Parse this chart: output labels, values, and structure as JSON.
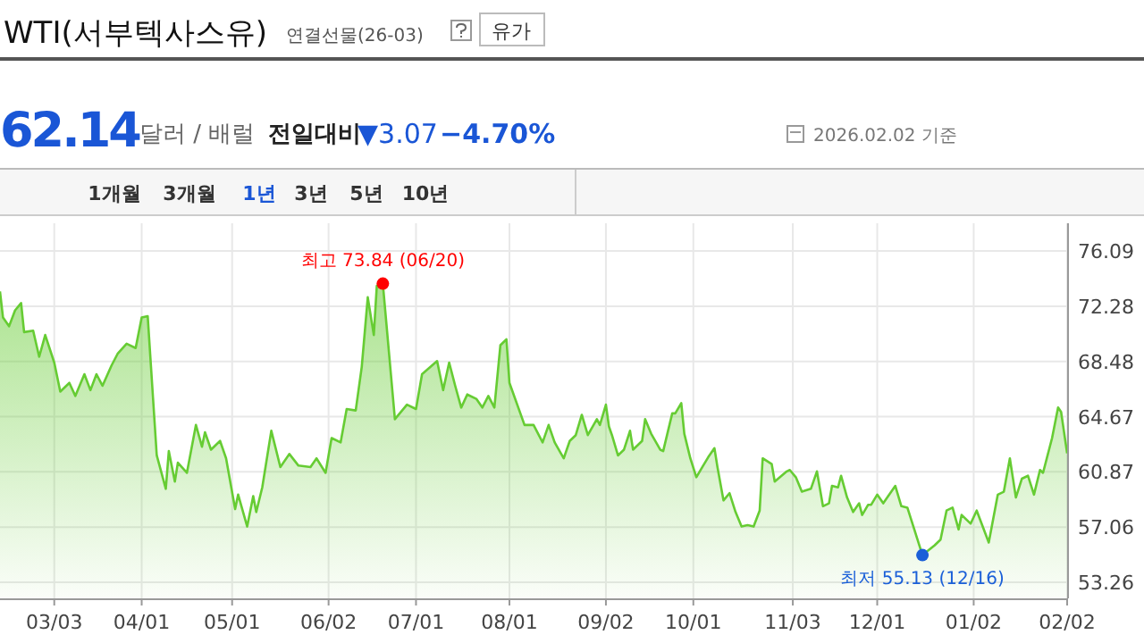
{
  "chart_data": {
    "type": "area",
    "title": "WTI(서부텍사스유)",
    "subtitle": "연결선물(26-03)",
    "annotations": [
      {
        "text": "최고 73.84 (06/20)",
        "x": "2025-06-20",
        "y": 73.84
      },
      {
        "text": "최저 55.13 (12/16)",
        "x": "2025-12-16",
        "y": 55.13
      },
      "유가",
      "62.14",
      "달러 / 배럴",
      "전일대비",
      "▼3.07",
      "−4.70%",
      "2026.02.02 기준",
      "1개월",
      "3개월",
      "1년",
      "3년",
      "5년",
      "10년"
    ],
    "x": [
      "2025-02-13",
      "2025-02-14",
      "2025-02-16",
      "2025-02-18",
      "2025-02-20",
      "2025-02-21",
      "2025-02-24",
      "2025-02-26",
      "2025-02-28",
      "2025-03-03",
      "2025-03-05",
      "2025-03-08",
      "2025-03-10",
      "2025-03-13",
      "2025-03-15",
      "2025-03-17",
      "2025-03-19",
      "2025-03-22",
      "2025-03-24",
      "2025-03-27",
      "2025-03-30",
      "2025-04-01",
      "2025-04-03",
      "2025-04-06",
      "2025-04-09",
      "2025-04-10",
      "2025-04-12",
      "2025-04-13",
      "2025-04-16",
      "2025-04-19",
      "2025-04-21",
      "2025-04-22",
      "2025-04-24",
      "2025-04-27",
      "2025-04-29",
      "2025-05-02",
      "2025-05-03",
      "2025-05-06",
      "2025-05-08",
      "2025-05-09",
      "2025-05-11",
      "2025-05-14",
      "2025-05-17",
      "2025-05-20",
      "2025-05-23",
      "2025-05-27",
      "2025-05-29",
      "2025-06-01",
      "2025-06-03",
      "2025-06-06",
      "2025-06-08",
      "2025-06-11",
      "2025-06-13",
      "2025-06-15",
      "2025-06-17",
      "2025-06-18",
      "2025-06-20",
      "2025-06-24",
      "2025-06-28",
      "2025-07-01",
      "2025-07-03",
      "2025-07-08",
      "2025-07-10",
      "2025-07-12",
      "2025-07-14",
      "2025-07-16",
      "2025-07-18",
      "2025-07-21",
      "2025-07-23",
      "2025-07-25",
      "2025-07-27",
      "2025-07-29",
      "2025-07-31",
      "2025-08-01",
      "2025-08-06",
      "2025-08-09",
      "2025-08-12",
      "2025-08-14",
      "2025-08-16",
      "2025-08-19",
      "2025-08-21",
      "2025-08-23",
      "2025-08-25",
      "2025-08-27",
      "2025-08-30",
      "2025-08-31",
      "2025-09-02",
      "2025-09-03",
      "2025-09-04",
      "2025-09-06",
      "2025-09-08",
      "2025-09-10",
      "2025-09-11",
      "2025-09-14",
      "2025-09-15",
      "2025-09-17",
      "2025-09-20",
      "2025-09-21",
      "2025-09-24",
      "2025-09-25",
      "2025-09-27",
      "2025-09-28",
      "2025-09-30",
      "2025-10-02",
      "2025-10-04",
      "2025-10-06",
      "2025-10-08",
      "2025-10-09",
      "2025-10-11",
      "2025-10-13",
      "2025-10-15",
      "2025-10-17",
      "2025-10-19",
      "2025-10-21",
      "2025-10-23",
      "2025-10-24",
      "2025-10-27",
      "2025-10-28",
      "2025-11-01",
      "2025-11-02",
      "2025-11-04",
      "2025-11-06",
      "2025-11-09",
      "2025-11-11",
      "2025-11-13",
      "2025-11-15",
      "2025-11-16",
      "2025-11-18",
      "2025-11-19",
      "2025-11-21",
      "2025-11-23",
      "2025-11-25",
      "2025-11-26",
      "2025-11-28",
      "2025-11-29",
      "2025-12-01",
      "2025-12-03",
      "2025-12-07",
      "2025-12-09",
      "2025-12-11",
      "2025-12-13",
      "2025-12-16",
      "2025-12-20",
      "2025-12-22",
      "2025-12-24",
      "2025-12-26",
      "2025-12-28",
      "2025-12-29",
      "2026-01-01",
      "2026-01-03",
      "2026-01-07",
      "2026-01-10",
      "2026-01-12",
      "2026-01-14",
      "2026-01-16",
      "2026-01-18",
      "2026-01-20",
      "2026-01-22",
      "2026-01-24",
      "2026-01-25",
      "2026-01-27",
      "2026-01-28",
      "2026-01-30",
      "2026-01-31",
      "2026-02-02"
    ],
    "series": [
      {
        "color": "#66cc33",
        "values": [
          73.3,
          71.5,
          70.9,
          72.0,
          72.5,
          70.5,
          70.6,
          68.8,
          70.3,
          68.4,
          66.4,
          67.0,
          66.1,
          67.6,
          66.5,
          67.6,
          66.8,
          68.2,
          69.0,
          69.7,
          69.4,
          71.5,
          71.6,
          62.0,
          59.7,
          62.3,
          60.2,
          61.5,
          60.8,
          64.1,
          62.6,
          63.6,
          62.4,
          63.0,
          61.8,
          58.3,
          59.3,
          57.1,
          59.2,
          58.1,
          59.8,
          63.7,
          61.2,
          62.1,
          61.3,
          61.2,
          61.8,
          60.8,
          63.2,
          62.9,
          65.2,
          65.1,
          68.1,
          72.9,
          70.3,
          73.7,
          73.84,
          64.5,
          65.5,
          65.2,
          67.6,
          68.5,
          66.5,
          68.4,
          66.8,
          65.3,
          66.2,
          65.9,
          65.3,
          66.1,
          65.3,
          69.6,
          70.0,
          67.0,
          64.1,
          64.1,
          62.9,
          64.1,
          62.9,
          61.8,
          63.0,
          63.4,
          64.8,
          63.4,
          64.5,
          64.1,
          65.5,
          64.0,
          63.4,
          62.0,
          62.4,
          63.7,
          62.4,
          63.0,
          64.5,
          63.5,
          62.4,
          62.3,
          64.9,
          64.9,
          65.6,
          63.5,
          61.8,
          60.5,
          61.2,
          61.9,
          62.5,
          61.2,
          58.9,
          59.4,
          58.1,
          57.1,
          57.2,
          57.1,
          58.2,
          61.8,
          61.4,
          60.2,
          60.9,
          61.0,
          60.5,
          59.5,
          59.7,
          60.9,
          58.5,
          58.7,
          59.9,
          59.8,
          60.6,
          59.1,
          58.1,
          58.7,
          57.9,
          58.6,
          58.6,
          59.3,
          58.7,
          59.9,
          58.5,
          58.4,
          57.1,
          55.13,
          55.8,
          56.2,
          58.2,
          58.4,
          56.9,
          57.9,
          57.3,
          58.2,
          56.0,
          59.3,
          59.5,
          61.8,
          59.1,
          60.4,
          60.6,
          59.3,
          61.0,
          60.8,
          62.4,
          63.2,
          65.3,
          65.0,
          62.14
        ]
      }
    ],
    "xlim": [
      "2025-02-13",
      "2026-02-02"
    ],
    "xticks": [
      {
        "value": "2025-03-03",
        "label": "03/03"
      },
      {
        "value": "2025-04-01",
        "label": "04/01"
      },
      {
        "value": "2025-05-01",
        "label": "05/01"
      },
      {
        "value": "2025-06-02",
        "label": "06/02"
      },
      {
        "value": "2025-07-01",
        "label": "07/01"
      },
      {
        "value": "2025-08-01",
        "label": "08/01"
      },
      {
        "value": "2025-09-02",
        "label": "09/02"
      },
      {
        "value": "2025-10-01",
        "label": "10/01"
      },
      {
        "value": "2025-11-03",
        "label": "11/03"
      },
      {
        "value": "2025-12-01",
        "label": "12/01"
      },
      {
        "value": "2026-01-02",
        "label": "01/02"
      },
      {
        "value": "2026-02-02",
        "label": "02/02"
      }
    ],
    "ylim": [
      52.15,
      78.0
    ],
    "yticks": [
      53.26,
      57.06,
      60.87,
      64.67,
      68.48,
      72.28,
      76.09
    ],
    "grid": true
  }
}
